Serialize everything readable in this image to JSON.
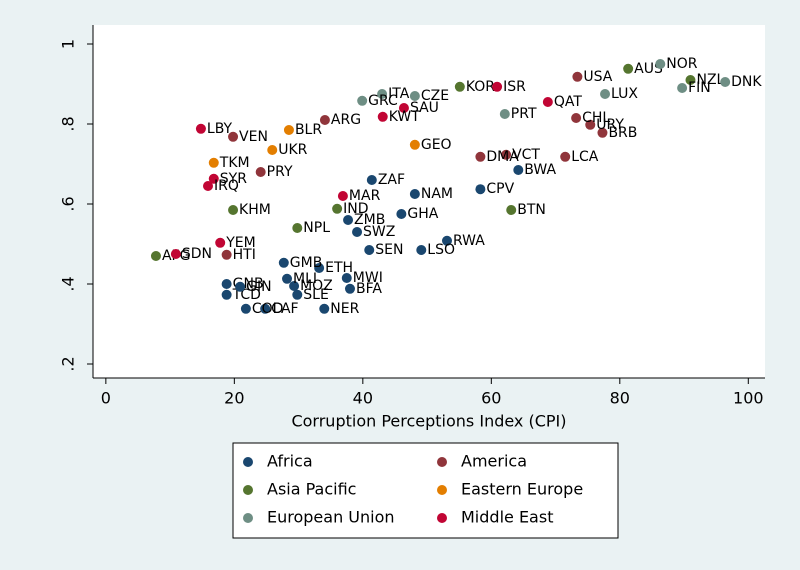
{
  "chart_data": {
    "type": "scatter",
    "x_label": "Corruption Perceptions Index (CPI)",
    "xlim": [
      -2,
      102.6
    ],
    "ylim": [
      0.165,
      1.0475
    ],
    "xticks": [
      0,
      20,
      40,
      60,
      80,
      100
    ],
    "yticks": [
      {
        "value": 0.2,
        "label": ".2"
      },
      {
        "value": 0.4,
        "label": ".4"
      },
      {
        "value": 0.6,
        "label": ".6"
      },
      {
        "value": 0.8,
        "label": ".8"
      },
      1
    ],
    "grid": false,
    "series": [
      {
        "name": "Africa",
        "color": "#1a476f",
        "x": [
          64.2,
          48.1,
          58.3,
          41.4,
          46,
          53.1,
          49.1,
          41,
          39.1,
          37.7,
          34,
          38,
          37.5,
          33.2,
          29.8,
          29.3,
          28.2,
          27.7,
          24.8,
          21.8,
          18.8,
          18.8,
          20.9
        ],
        "values": [
          0.685,
          0.625,
          0.637,
          0.66,
          0.575,
          0.508,
          0.485,
          0.485,
          0.53,
          0.56,
          0.338,
          0.388,
          0.415,
          0.44,
          0.373,
          0.395,
          0.413,
          0.453,
          0.338,
          0.338,
          0.373,
          0.4,
          0.393
        ],
        "point_labels": [
          "BWA",
          "NAM",
          "CPV",
          "ZAF",
          "GHA",
          "RWA",
          "LSO",
          "SEN",
          "SWZ",
          "ZMB",
          "NER",
          "BFA",
          "MWI",
          "ETH",
          "SLE",
          "MOZ",
          "MLI",
          "GMB",
          "CAF",
          "COD",
          "TCD",
          "GNB",
          "GIN"
        ]
      },
      {
        "name": "America",
        "color": "#90353b",
        "x": [
          77.3,
          75.4,
          73.2,
          71.5,
          62.3,
          58.3,
          73.4,
          34.1,
          19.8,
          24.1,
          18.8
        ],
        "values": [
          0.778,
          0.798,
          0.815,
          0.718,
          0.723,
          0.718,
          0.918,
          0.81,
          0.768,
          0.68,
          0.473
        ],
        "point_labels": [
          "BRB",
          "URY",
          "CHL",
          "LCA",
          "VCT",
          "DMA",
          "USA",
          "ARG",
          "VEN",
          "PRY",
          "HTI"
        ]
      },
      {
        "name": "Asia Pacific",
        "color": "#55752f",
        "x": [
          63.1,
          55.1,
          81.3,
          91,
          36,
          29.8,
          19.8,
          7.8
        ],
        "values": [
          0.585,
          0.893,
          0.938,
          0.91,
          0.588,
          0.54,
          0.585,
          0.47
        ],
        "point_labels": [
          "BTN",
          "KOR",
          "AUS",
          "NZL",
          "IND",
          "NPL",
          "KHM",
          "AFG"
        ]
      },
      {
        "name": "Eastern Europe",
        "color": "#e37e00",
        "x": [
          16.8,
          28.5,
          25.9,
          48.1
        ],
        "values": [
          0.703,
          0.785,
          0.735,
          0.748
        ],
        "point_labels": [
          "TKM",
          "BLR",
          "UKR",
          "GEO"
        ]
      },
      {
        "name": "European Union",
        "color": "#6e8e84",
        "x": [
          86.3,
          89.7,
          96.4,
          43,
          39.9,
          48.1,
          62.1,
          77.7
        ],
        "values": [
          0.95,
          0.89,
          0.905,
          0.875,
          0.858,
          0.87,
          0.825,
          0.875
        ],
        "point_labels": [
          "NOR",
          "FIN",
          "DNK",
          "ITA",
          "GRC",
          "CZE",
          "PRT",
          "LUX"
        ]
      },
      {
        "name": "Middle East",
        "color": "#c10534",
        "x": [
          60.9,
          14.8,
          16.8,
          15.9,
          17.8,
          10.9,
          36.9,
          68.8,
          46.4,
          43.1
        ],
        "values": [
          0.893,
          0.788,
          0.663,
          0.645,
          0.503,
          0.475,
          0.62,
          0.855,
          0.84,
          0.818
        ],
        "point_labels": [
          "ISR",
          "LBY",
          "SYR",
          "IRQ",
          "YEM",
          "SDN",
          "MAR",
          "QAT",
          "SAU",
          "KWT"
        ]
      }
    ]
  }
}
